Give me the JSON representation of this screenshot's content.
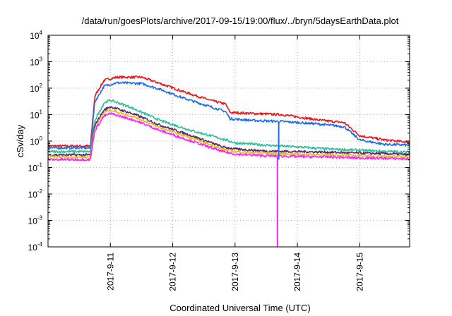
{
  "chart_data": {
    "type": "line",
    "title": "/data/run/goesPlots/archive/2017-09-15/19:00/flux/../bryn/5daysEarthData.plot",
    "xlabel": "Coordinated Universal Time (UTC)",
    "ylabel": "cSv/day",
    "yscale": "log",
    "ylim": [
      0.0001,
      10000
    ],
    "xlim": [
      10.0,
      15.8
    ],
    "grid": "dotted",
    "yticks": [
      {
        "base": "10",
        "exp": "-4",
        "value": 0.0001
      },
      {
        "base": "10",
        "exp": "-3",
        "value": 0.001
      },
      {
        "base": "10",
        "exp": "-2",
        "value": 0.01
      },
      {
        "base": "10",
        "exp": "-1",
        "value": 0.1
      },
      {
        "base": "10",
        "exp": "0",
        "value": 1
      },
      {
        "base": "10",
        "exp": "1",
        "value": 10
      },
      {
        "base": "10",
        "exp": "2",
        "value": 100
      },
      {
        "base": "10",
        "exp": "3",
        "value": 1000
      },
      {
        "base": "10",
        "exp": "4",
        "value": 10000
      }
    ],
    "xticks": [
      {
        "label": "2017-9-11",
        "value": 11
      },
      {
        "label": "2017-9-12",
        "value": 12
      },
      {
        "label": "2017-9-13",
        "value": 13
      },
      {
        "label": "2017-9-14",
        "value": 14
      },
      {
        "label": "2017-9-15",
        "value": 15
      }
    ],
    "series": [
      {
        "color": "#e41a1c",
        "x": [
          10.0,
          10.68,
          10.75,
          10.9,
          11.1,
          11.5,
          11.8,
          12.2,
          12.6,
          12.85,
          12.92,
          13.3,
          13.75,
          14.4,
          14.75,
          15.0,
          15.4,
          15.8
        ],
        "y": [
          0.65,
          0.65,
          50,
          200,
          260,
          260,
          150,
          70,
          35,
          25,
          12,
          11,
          10,
          6,
          5,
          1.6,
          1.1,
          0.9
        ]
      },
      {
        "color": "#1f6fe6",
        "x": [
          10.0,
          10.68,
          10.75,
          10.9,
          11.1,
          11.5,
          11.8,
          12.2,
          12.6,
          12.85,
          12.92,
          13.3,
          13.75,
          14.3,
          14.75,
          15.0,
          15.4,
          15.8
        ],
        "y": [
          0.55,
          0.55,
          30,
          120,
          160,
          150,
          90,
          40,
          20,
          13,
          7,
          6,
          5.5,
          4.5,
          3.5,
          1.1,
          0.75,
          0.7
        ]
      },
      {
        "color": "#2dbf9a",
        "x": [
          10.0,
          10.68,
          10.75,
          10.9,
          11.0,
          11.3,
          11.8,
          12.3,
          12.8,
          13.0,
          13.5,
          14.0,
          14.5,
          15.0,
          15.5,
          15.8
        ],
        "y": [
          0.4,
          0.4,
          6,
          28,
          35,
          20,
          6,
          2.5,
          1.2,
          0.85,
          0.7,
          0.6,
          0.5,
          0.45,
          0.4,
          0.38
        ]
      },
      {
        "color": "#5a2a6e",
        "x": [
          10.0,
          10.68,
          10.75,
          10.9,
          11.0,
          11.4,
          11.8,
          12.3,
          12.8,
          13.0,
          13.5,
          14.0,
          14.5,
          15.0,
          15.5,
          15.8
        ],
        "y": [
          0.3,
          0.3,
          4,
          15,
          20,
          10,
          4,
          1.6,
          0.6,
          0.5,
          0.42,
          0.4,
          0.38,
          0.35,
          0.33,
          0.3
        ]
      },
      {
        "color": "#e0c020",
        "x": [
          10.0,
          10.68,
          10.75,
          10.9,
          11.0,
          11.4,
          11.8,
          12.3,
          12.8,
          13.0,
          13.5,
          14.0,
          14.5,
          15.0,
          15.5,
          15.8
        ],
        "y": [
          0.25,
          0.25,
          3,
          12,
          15,
          8,
          3.2,
          1.3,
          0.5,
          0.4,
          0.35,
          0.32,
          0.3,
          0.28,
          0.26,
          0.25
        ]
      },
      {
        "color": "#ff20ff",
        "x": [
          10.0,
          10.68,
          10.75,
          10.9,
          11.0,
          11.4,
          11.8,
          12.3,
          12.8,
          13.0,
          13.5,
          14.0,
          14.5,
          15.0,
          15.5,
          15.8
        ],
        "y": [
          0.2,
          0.2,
          2.5,
          9,
          11,
          6,
          2.5,
          1.0,
          0.4,
          0.32,
          0.28,
          0.26,
          0.25,
          0.23,
          0.22,
          0.21
        ]
      }
    ],
    "spikes": [
      {
        "color": "#1f6fe6",
        "x": 13.7,
        "y_from": 5,
        "y_to": 0.2
      },
      {
        "color": "#ff20ff",
        "x": 13.68,
        "y_from": 0.25,
        "y_to": 0.0001
      }
    ]
  }
}
